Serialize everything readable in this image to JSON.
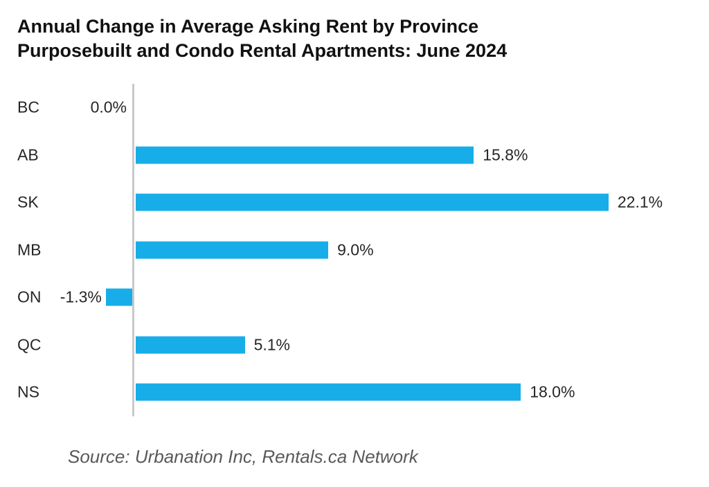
{
  "title": {
    "line1": "Annual Change in Average Asking Rent by Province",
    "line2": "Purposebuilt and Condo Rental Apartments: June 2024"
  },
  "source": "Source: Urbanation Inc, Rentals.ca Network",
  "chart_data": {
    "type": "bar",
    "orientation": "horizontal",
    "title": "Annual Change in Average Asking Rent by Province Purposebuilt and Condo Rental Apartments: June 2024",
    "categories": [
      "BC",
      "AB",
      "SK",
      "MB",
      "ON",
      "QC",
      "NS"
    ],
    "values": [
      0.0,
      15.8,
      22.1,
      9.0,
      -1.3,
      5.1,
      18.0
    ],
    "value_labels": [
      "0.0%",
      "15.8%",
      "22.1%",
      "9.0%",
      "-1.3%",
      "5.1%",
      "18.0%"
    ],
    "xlabel": "",
    "ylabel": "",
    "xlim": [
      -2,
      24
    ],
    "grid": false,
    "legend": "none",
    "bar_color": "#17ade9",
    "axis_line_color": "#c9c9c9",
    "label_color": "#262626",
    "source_color": "#58595b"
  }
}
